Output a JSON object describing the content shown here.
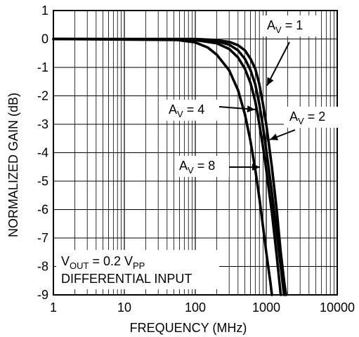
{
  "chart_data": {
    "type": "line",
    "xscale": "log",
    "xlim": [
      1,
      10000
    ],
    "ylim": [
      -9,
      1
    ],
    "grid": true,
    "xlabel": "FREQUENCY (MHz)",
    "ylabel": "NORMALIZED GAIN (dB)",
    "x_ticks": [
      "1",
      "10",
      "100",
      "1000",
      "10000"
    ],
    "y_ticks": [
      "1",
      "0",
      "-1",
      "-2",
      "-3",
      "-4",
      "-5",
      "-6",
      "-7",
      "-8",
      "-9"
    ],
    "annotation": {
      "line1": {
        "v": "V",
        "v_sub": "OUT",
        "eq": " = 0.2 V",
        "pp_sub": "PP"
      },
      "line2": "DIFFERENTIAL INPUT"
    },
    "series": [
      {
        "name": "AV = 1",
        "label": {
          "a": "A",
          "sub": "V",
          "rest": " = 1"
        },
        "points": [
          [
            1,
            0
          ],
          [
            100,
            0
          ],
          [
            200,
            -0.04
          ],
          [
            300,
            -0.1
          ],
          [
            400,
            -0.22
          ],
          [
            500,
            -0.4
          ],
          [
            600,
            -0.7
          ],
          [
            700,
            -1.05
          ],
          [
            800,
            -1.6
          ],
          [
            900,
            -2.3
          ],
          [
            1000,
            -3.0
          ],
          [
            1200,
            -4.5
          ],
          [
            1400,
            -6.0
          ],
          [
            1600,
            -7.5
          ],
          [
            1800,
            -8.6
          ],
          [
            1900,
            -9.0
          ]
        ]
      },
      {
        "name": "AV = 2",
        "label": {
          "a": "A",
          "sub": "V",
          "rest": " = 2"
        },
        "points": [
          [
            1,
            0
          ],
          [
            100,
            -0.02
          ],
          [
            200,
            -0.08
          ],
          [
            300,
            -0.2
          ],
          [
            400,
            -0.4
          ],
          [
            500,
            -0.7
          ],
          [
            600,
            -1.1
          ],
          [
            700,
            -1.6
          ],
          [
            800,
            -2.3
          ],
          [
            900,
            -3.1
          ],
          [
            1000,
            -3.9
          ],
          [
            1200,
            -5.4
          ],
          [
            1400,
            -6.8
          ],
          [
            1600,
            -8.0
          ],
          [
            1780,
            -9.0
          ]
        ]
      },
      {
        "name": "AV = 4",
        "label": {
          "a": "A",
          "sub": "V",
          "rest": " = 4"
        },
        "points": [
          [
            1,
            0
          ],
          [
            100,
            -0.04
          ],
          [
            200,
            -0.15
          ],
          [
            300,
            -0.35
          ],
          [
            400,
            -0.65
          ],
          [
            500,
            -1.05
          ],
          [
            600,
            -1.55
          ],
          [
            700,
            -2.2
          ],
          [
            800,
            -3.0
          ],
          [
            900,
            -3.8
          ],
          [
            1000,
            -4.6
          ],
          [
            1200,
            -6.1
          ],
          [
            1400,
            -7.6
          ],
          [
            1600,
            -9.0
          ]
        ]
      },
      {
        "name": "AV = 8",
        "label": {
          "a": "A",
          "sub": "V",
          "rest": " = 8"
        },
        "points": [
          [
            1,
            0
          ],
          [
            50,
            -0.02
          ],
          [
            100,
            -0.12
          ],
          [
            150,
            -0.3
          ],
          [
            200,
            -0.55
          ],
          [
            300,
            -1.1
          ],
          [
            400,
            -1.8
          ],
          [
            500,
            -2.65
          ],
          [
            600,
            -3.6
          ],
          [
            700,
            -4.6
          ],
          [
            800,
            -5.6
          ],
          [
            900,
            -6.6
          ],
          [
            1000,
            -7.5
          ],
          [
            1150,
            -8.6
          ],
          [
            1200,
            -9.0
          ]
        ]
      }
    ]
  }
}
